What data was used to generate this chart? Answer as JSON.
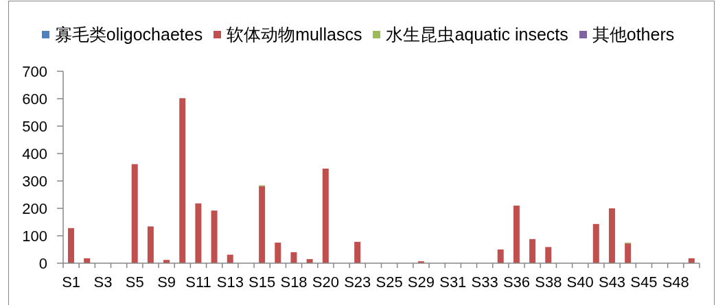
{
  "chart_data": {
    "type": "bar",
    "stacked": true,
    "legend": "top",
    "categories": [
      "S1",
      null,
      "S3",
      null,
      "S5",
      null,
      "S9",
      null,
      "S11",
      null,
      "S13",
      null,
      "S15",
      null,
      "S18",
      null,
      "S20",
      null,
      "S23",
      null,
      "S25",
      null,
      "S29",
      null,
      "S31",
      null,
      "S33",
      null,
      "S36",
      null,
      "S38",
      null,
      "S40",
      null,
      "S43",
      null,
      "S45",
      null,
      "S48",
      null
    ],
    "series": [
      {
        "name": "寡毛类oligochaetes",
        "color": "#4f81bd",
        "values": [
          0,
          0,
          0,
          0,
          0,
          0,
          0,
          0,
          0,
          0,
          0,
          0,
          0,
          0,
          0,
          0,
          0,
          0,
          0,
          0,
          0,
          0,
          0,
          0,
          0,
          0,
          0,
          0,
          0,
          0,
          0,
          0,
          0,
          0,
          0,
          0,
          0,
          0,
          0,
          0
        ]
      },
      {
        "name": "软体动物mullascs",
        "color": "#c0504d",
        "values": [
          128,
          18,
          0,
          0,
          361,
          134,
          12,
          602,
          218,
          192,
          31,
          0,
          281,
          75,
          40,
          15,
          345,
          0,
          78,
          0,
          0,
          0,
          7,
          0,
          0,
          0,
          0,
          50,
          210,
          88,
          59,
          0,
          0,
          143,
          200,
          72,
          0,
          0,
          0,
          18
        ]
      },
      {
        "name": "水生昆虫aquatic insects",
        "color": "#9bbb59",
        "values": [
          0,
          0,
          0,
          0,
          0,
          0,
          0,
          0,
          0,
          0,
          0,
          0,
          3,
          0,
          0,
          0,
          0,
          0,
          0,
          0,
          0,
          0,
          0,
          0,
          0,
          0,
          0,
          0,
          0,
          0,
          0,
          0,
          0,
          0,
          0,
          3,
          0,
          0,
          0,
          0
        ]
      },
      {
        "name": "其他others",
        "color": "#8064a2",
        "values": [
          0,
          0,
          0,
          0,
          0,
          0,
          0,
          0,
          0,
          0,
          0,
          0,
          0,
          0,
          0,
          0,
          0,
          0,
          0,
          0,
          0,
          0,
          0,
          0,
          0,
          0,
          0,
          0,
          0,
          0,
          0,
          0,
          0,
          0,
          0,
          0,
          0,
          0,
          0,
          0
        ]
      }
    ],
    "ylim": [
      0,
      700
    ],
    "yticks": [
      0,
      100,
      200,
      300,
      400,
      500,
      600,
      700
    ]
  }
}
